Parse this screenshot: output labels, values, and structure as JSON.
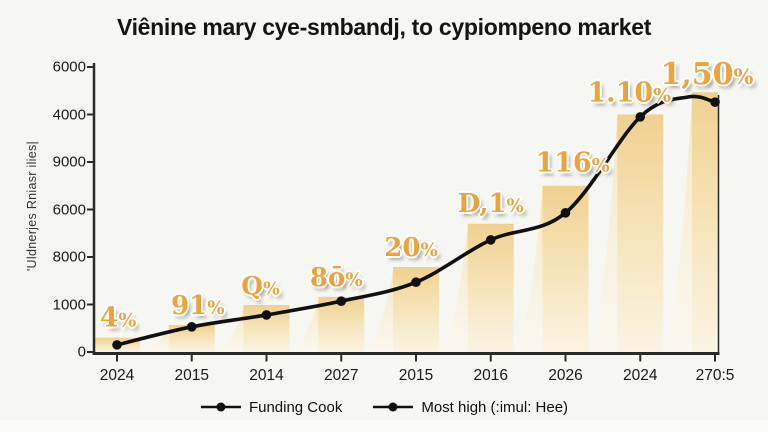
{
  "title": "Viênine mary cye-smbandj, to cypiompeno market",
  "y_axis": {
    "label": "'Uldnerjes Rniasr ilies|",
    "tick_labels_top_to_bottom": [
      "6000",
      "4000",
      "9000",
      "6000",
      "8000",
      "1000",
      "0"
    ]
  },
  "x_axis": {
    "categories": [
      "2024",
      "2015",
      "2014",
      "2027",
      "2015",
      "2016",
      "2026",
      "2024",
      "270:5"
    ]
  },
  "legend": {
    "items": [
      {
        "label": "Funding Cook"
      },
      {
        "label": "Most high (:imul: Hee)"
      }
    ]
  },
  "colors": {
    "bar_top": "#f0d08e",
    "bar_mid": "#f6e5bb",
    "bar_bottom": "#fbf2dd",
    "ramp_top": "#f4e3b6",
    "ramp_bottom": "#fdf8ea",
    "line": "#111111",
    "label_gold": "#eda33c",
    "axis": "#2a2a2a",
    "background": "#f6f6f3"
  },
  "chart_data": {
    "type": "line",
    "title": "Viênine mary cye-smbandj, to cypiompeno market",
    "ylabel": "'Uldnerjes Rniasr ilies|",
    "ylim": [
      0,
      6000
    ],
    "grid": false,
    "legend_position": "bottom",
    "categories": [
      "2024",
      "2015",
      "2014",
      "2027",
      "2015",
      "2016",
      "2026",
      "2024",
      "270:5"
    ],
    "ytick_labels_top_to_bottom": [
      "6000",
      "4000",
      "9000",
      "6000",
      "8000",
      "1000",
      "0"
    ],
    "series": [
      {
        "name": "Funding Cook",
        "type": "bar",
        "values": [
          300,
          570,
          990,
          1160,
          1790,
          2700,
          3500,
          5000,
          5470
        ]
      },
      {
        "name": "Most high (:imul: Hee)",
        "type": "line",
        "values": [
          150,
          530,
          780,
          1070,
          1470,
          2360,
          2930,
          4950,
          5260
        ]
      }
    ],
    "point_labels": [
      "4%",
      "91%",
      "Q%",
      "8ō%",
      "20%",
      "D,1%",
      "116%",
      "1.10%",
      "1,50%"
    ]
  }
}
